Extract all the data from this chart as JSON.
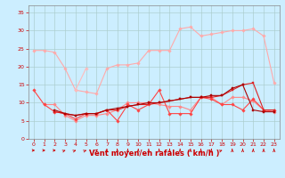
{
  "x": [
    0,
    1,
    2,
    3,
    4,
    5,
    6,
    7,
    8,
    9,
    10,
    11,
    12,
    13,
    14,
    15,
    16,
    17,
    18,
    19,
    20,
    21,
    22,
    23
  ],
  "lines": [
    {
      "color": "#ffaaaa",
      "linewidth": 0.8,
      "marker": "D",
      "markersize": 1.8,
      "y": [
        24.5,
        24.5,
        24.0,
        19.5,
        13.5,
        13.0,
        12.5,
        19.5,
        20.5,
        20.5,
        21.0,
        24.5,
        24.5,
        24.5,
        30.5,
        31.0,
        28.5,
        29.0,
        29.5,
        30.0,
        30.0,
        30.5,
        28.5,
        15.5
      ]
    },
    {
      "color": "#ffbbbb",
      "linewidth": 0.8,
      "marker": "D",
      "markersize": 1.8,
      "y": [
        null,
        null,
        null,
        null,
        13.5,
        19.5,
        null,
        null,
        null,
        null,
        null,
        null,
        null,
        null,
        null,
        null,
        null,
        null,
        null,
        null,
        null,
        null,
        null,
        null
      ]
    },
    {
      "color": "#ff8888",
      "linewidth": 0.8,
      "marker": "D",
      "markersize": 1.8,
      "y": [
        null,
        9.5,
        9.5,
        6.5,
        5.0,
        6.5,
        6.5,
        7.0,
        8.0,
        10.0,
        10.0,
        10.0,
        9.5,
        9.0,
        9.0,
        8.0,
        11.5,
        11.5,
        9.5,
        11.5,
        11.5,
        10.5,
        8.0,
        7.5
      ]
    },
    {
      "color": "#ff4444",
      "linewidth": 0.8,
      "marker": "D",
      "markersize": 1.8,
      "y": [
        13.5,
        9.5,
        7.5,
        7.0,
        5.5,
        7.0,
        7.0,
        8.0,
        5.0,
        9.5,
        8.0,
        9.5,
        13.5,
        7.0,
        7.0,
        7.0,
        11.5,
        11.0,
        9.5,
        9.5,
        8.0,
        11.0,
        8.0,
        8.0
      ]
    },
    {
      "color": "#dd2222",
      "linewidth": 0.8,
      "marker": "s",
      "markersize": 1.8,
      "y": [
        null,
        null,
        7.5,
        7.0,
        6.5,
        7.0,
        7.0,
        8.0,
        8.0,
        9.0,
        9.5,
        9.5,
        10.0,
        10.5,
        11.0,
        11.5,
        11.5,
        11.5,
        12.0,
        13.5,
        15.0,
        15.5,
        8.0,
        8.0
      ]
    },
    {
      "color": "#aa0000",
      "linewidth": 0.8,
      "marker": "s",
      "markersize": 1.8,
      "y": [
        null,
        null,
        8.0,
        7.0,
        6.5,
        7.0,
        7.0,
        8.0,
        8.5,
        9.0,
        9.5,
        10.0,
        10.0,
        10.5,
        11.0,
        11.5,
        11.5,
        12.0,
        12.0,
        14.0,
        15.0,
        8.0,
        7.5,
        7.5
      ]
    }
  ],
  "xlabel": "Vent moyen/en rafales ( km/h )",
  "xlabel_fontsize": 6,
  "xlabel_color": "#cc0000",
  "xlim": [
    -0.5,
    23.5
  ],
  "ylim": [
    0,
    37
  ],
  "yticks": [
    0,
    5,
    10,
    15,
    20,
    25,
    30,
    35
  ],
  "xticks": [
    0,
    1,
    2,
    3,
    4,
    5,
    6,
    7,
    8,
    9,
    10,
    11,
    12,
    13,
    14,
    15,
    16,
    17,
    18,
    19,
    20,
    21,
    22,
    23
  ],
  "tick_fontsize": 4.5,
  "tick_color": "#cc0000",
  "bg_color": "#cceeff",
  "grid_color": "#aacccc",
  "arrow_directions": [
    90,
    90,
    90,
    135,
    135,
    135,
    160,
    180,
    180,
    180,
    180,
    180,
    180,
    180,
    180,
    180,
    180,
    180,
    135,
    180,
    180,
    180,
    180,
    180
  ]
}
